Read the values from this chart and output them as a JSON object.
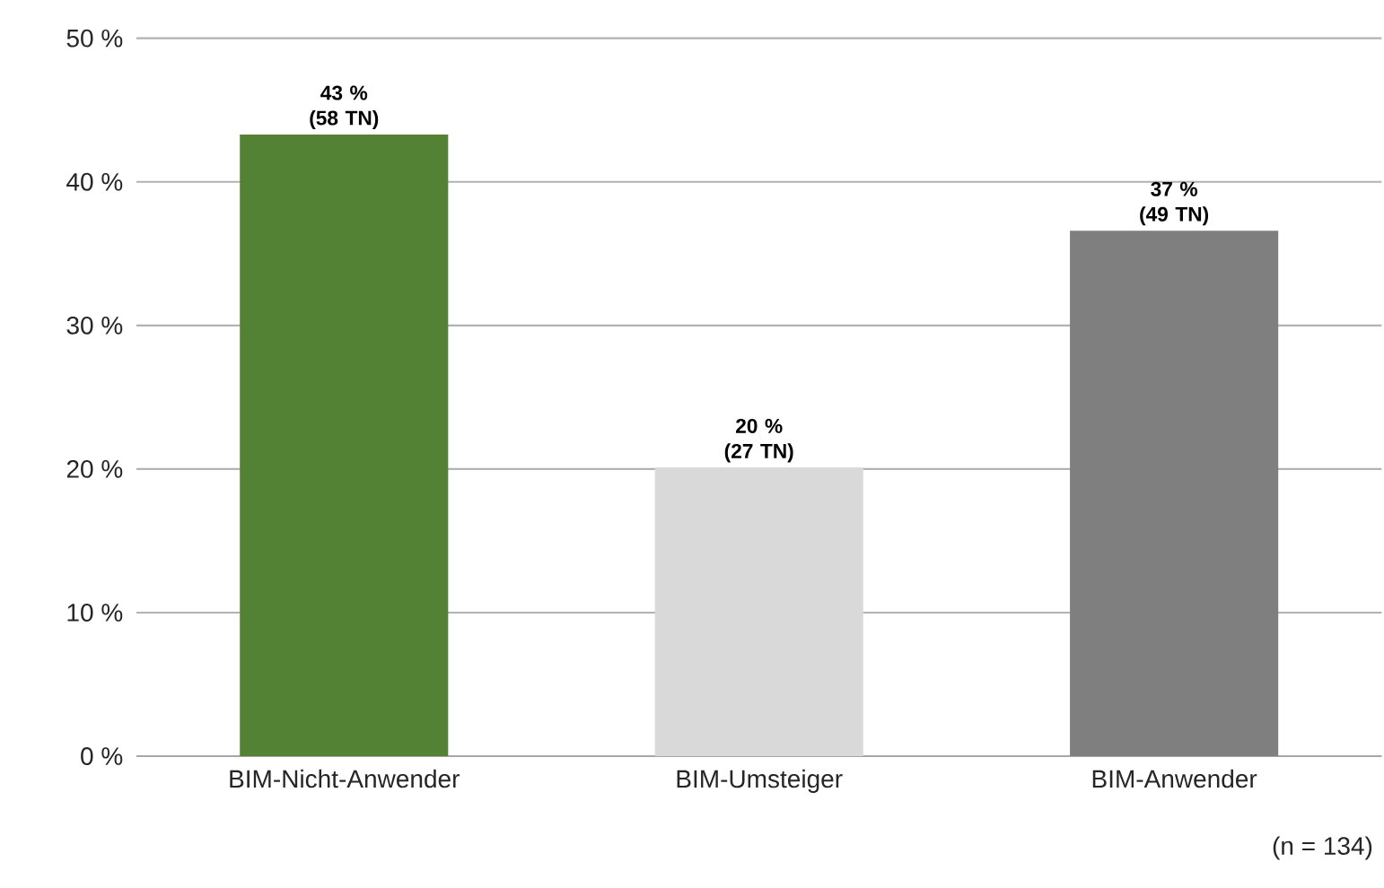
{
  "chart_data": {
    "type": "bar",
    "categories": [
      "BIM-Nicht-Anwender",
      "BIM-Umsteiger",
      "BIM-Anwender"
    ],
    "values": [
      43.3,
      20.1,
      36.6
    ],
    "colors": [
      "#548235",
      "#d9d9d9",
      "#7f7f7f"
    ],
    "value_labels": [
      "43 % (58 TN)",
      "20 % (27 TN)",
      "37 % (49 TN)"
    ],
    "ylim": [
      0,
      50
    ],
    "yticks": [
      {
        "value": 0,
        "label": "0 %"
      },
      {
        "value": 10,
        "label": "10 %"
      },
      {
        "value": 20,
        "label": "20 %"
      },
      {
        "value": 30,
        "label": "30 %"
      },
      {
        "value": 40,
        "label": "40 %"
      },
      {
        "value": 50,
        "label": "50 %"
      }
    ],
    "grid": "y",
    "annotations": [
      "(n = 134)"
    ]
  }
}
